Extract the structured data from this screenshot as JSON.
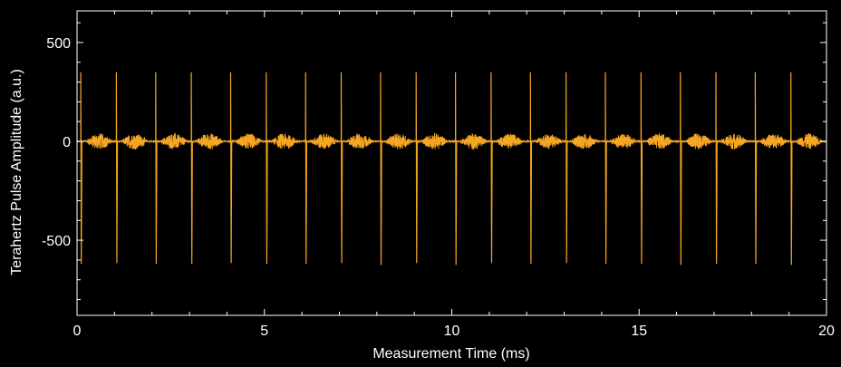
{
  "colors": {
    "background": "#000000",
    "axes": "#ffffff",
    "signal": "#f5a623"
  },
  "chart_data": {
    "type": "line",
    "xlabel": "Measurement Time (ms)",
    "ylabel": "Terahertz Pulse Amplitude (a.u.)",
    "xlim": [
      0,
      20
    ],
    "ylim": [
      -880,
      660
    ],
    "x_ticks": [
      0,
      5,
      10,
      15,
      20
    ],
    "y_ticks": [
      500,
      0,
      -500
    ],
    "x_minor_step": 1,
    "y_minor_step": 100,
    "grid": false,
    "series": [
      {
        "pulse_times_ms": [
          0.1,
          1.05,
          2.1,
          3.05,
          4.1,
          5.05,
          6.1,
          7.05,
          8.1,
          9.05,
          10.1,
          11.05,
          12.1,
          13.05,
          14.1,
          15.05,
          16.1,
          17.05,
          18.1,
          19.05
        ],
        "pulse_max": [
          350,
          350,
          350,
          350,
          350,
          350,
          350,
          350,
          350,
          350,
          350,
          350,
          350,
          350,
          350,
          350,
          350,
          350,
          350,
          350
        ],
        "pulse_min": [
          -620,
          -615,
          -620,
          -620,
          -615,
          -620,
          -620,
          -615,
          -625,
          -615,
          -625,
          -615,
          -620,
          -615,
          -620,
          -620,
          -625,
          -620,
          -620,
          -625
        ],
        "baseline": 0,
        "noise_amplitude": 40
      }
    ]
  }
}
